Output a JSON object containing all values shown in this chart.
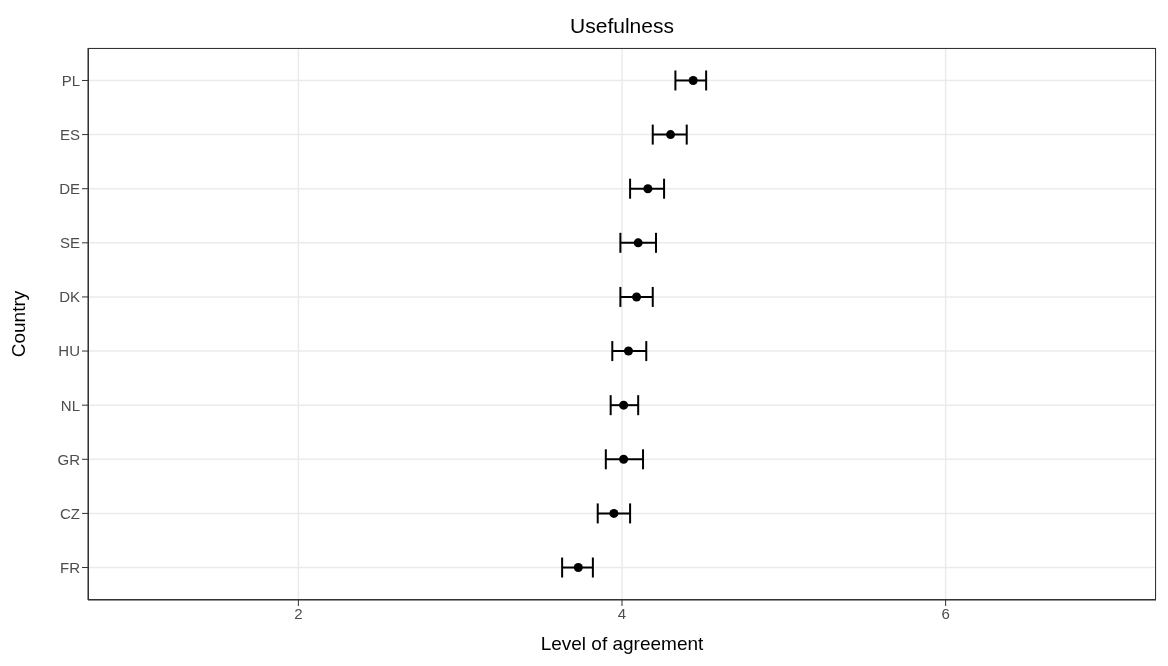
{
  "chart_data": {
    "type": "scatter",
    "title": "Usefulness",
    "xlabel": "Level of agreement",
    "ylabel": "Country",
    "orientation": "horizontal",
    "categories": [
      "PL",
      "ES",
      "DE",
      "SE",
      "DK",
      "HU",
      "NL",
      "GR",
      "CZ",
      "FR"
    ],
    "values": [
      4.44,
      4.3,
      4.16,
      4.1,
      4.09,
      4.04,
      4.01,
      4.01,
      3.95,
      3.73
    ],
    "errors": [
      [
        4.33,
        4.52
      ],
      [
        4.19,
        4.4
      ],
      [
        4.05,
        4.26
      ],
      [
        3.99,
        4.21
      ],
      [
        3.99,
        4.19
      ],
      [
        3.94,
        4.15
      ],
      [
        3.93,
        4.1
      ],
      [
        3.9,
        4.13
      ],
      [
        3.85,
        4.05
      ],
      [
        3.63,
        3.82
      ]
    ],
    "color": "#000000",
    "marker": "circle",
    "xlim": [
      0.7,
      7.3
    ],
    "xticks": [
      2,
      4,
      6
    ],
    "grid": true
  }
}
